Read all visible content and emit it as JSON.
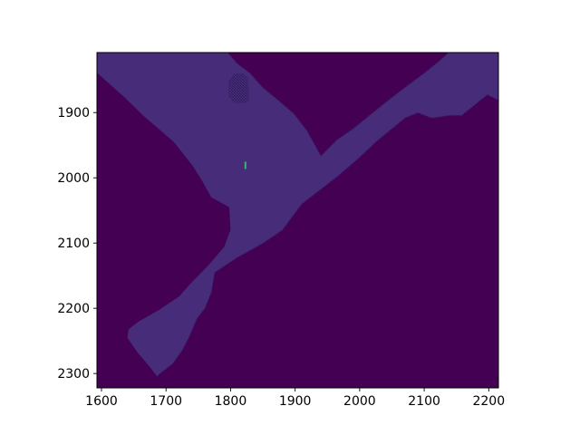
{
  "chart_data": {
    "type": "heatmap",
    "title": "",
    "xlabel": "",
    "ylabel": "",
    "xlim": [
      1593,
      2215
    ],
    "ylim": [
      2322,
      1808
    ],
    "y_axis_inverted": true,
    "x_ticks": [
      1600,
      1700,
      1800,
      1900,
      2000,
      2100,
      2200
    ],
    "y_ticks": [
      1900,
      2000,
      2100,
      2200,
      2300
    ],
    "x_tick_labels": [
      "1600",
      "1700",
      "1800",
      "1900",
      "2000",
      "2100",
      "2200"
    ],
    "y_tick_labels": [
      "1900",
      "2000",
      "2100",
      "2200",
      "2300"
    ],
    "grid": false,
    "colormap": "viridis",
    "colors": {
      "background": "#440154",
      "free_space": "#472c7a",
      "hatched_edge": "#3b2a6e",
      "marker": "#35b779"
    },
    "regions": [
      {
        "name": "free-space",
        "value": "low",
        "polygon": [
          [
            1593,
            1808
          ],
          [
            1795,
            1808
          ],
          [
            1810,
            1825
          ],
          [
            1830,
            1840
          ],
          [
            1850,
            1862
          ],
          [
            1872,
            1880
          ],
          [
            1898,
            1902
          ],
          [
            1918,
            1928
          ],
          [
            1940,
            1967
          ],
          [
            1965,
            1942
          ],
          [
            1990,
            1925
          ],
          [
            2015,
            1905
          ],
          [
            2040,
            1885
          ],
          [
            2070,
            1862
          ],
          [
            2100,
            1840
          ],
          [
            2125,
            1820
          ],
          [
            2138,
            1808
          ],
          [
            2215,
            1808
          ],
          [
            2215,
            1881
          ],
          [
            2198,
            1872
          ],
          [
            2178,
            1888
          ],
          [
            2158,
            1904
          ],
          [
            2140,
            1904
          ],
          [
            2112,
            1908
          ],
          [
            2090,
            1900
          ],
          [
            2070,
            1908
          ],
          [
            2053,
            1922
          ],
          [
            2028,
            1942
          ],
          [
            2000,
            1968
          ],
          [
            1965,
            1998
          ],
          [
            1910,
            2040
          ],
          [
            1880,
            2080
          ],
          [
            1850,
            2100
          ],
          [
            1810,
            2122
          ],
          [
            1775,
            2145
          ],
          [
            1770,
            2175
          ],
          [
            1760,
            2200
          ],
          [
            1748,
            2215
          ],
          [
            1735,
            2245
          ],
          [
            1725,
            2264
          ],
          [
            1710,
            2285
          ],
          [
            1690,
            2300
          ],
          [
            1668,
            2322
          ],
          [
            1593,
            2322
          ]
        ]
      },
      {
        "name": "wall-left-block",
        "value": "background",
        "polygon": [
          [
            1593,
            1839
          ],
          [
            1635,
            1876
          ],
          [
            1665,
            1905
          ],
          [
            1712,
            1945
          ],
          [
            1740,
            1980
          ],
          [
            1755,
            2003
          ],
          [
            1770,
            2030
          ],
          [
            1798,
            2045
          ],
          [
            1800,
            2080
          ],
          [
            1790,
            2106
          ],
          [
            1765,
            2135
          ],
          [
            1740,
            2160
          ],
          [
            1720,
            2182
          ],
          [
            1690,
            2202
          ],
          [
            1658,
            2220
          ],
          [
            1642,
            2232
          ],
          [
            1640,
            2245
          ],
          [
            1656,
            2268
          ],
          [
            1675,
            2290
          ],
          [
            1700,
            2322
          ],
          [
            1593,
            2322
          ]
        ]
      },
      {
        "name": "wall-lower-right-block",
        "value": "background",
        "polygon": [
          [
            2215,
            2030
          ],
          [
            2195,
            2012
          ],
          [
            2170,
            1990
          ],
          [
            2150,
            1972
          ],
          [
            2126,
            1953
          ],
          [
            2110,
            1935
          ],
          [
            2092,
            1940
          ],
          [
            2078,
            1950
          ],
          [
            2055,
            1966
          ],
          [
            2040,
            1982
          ],
          [
            2010,
            1988
          ],
          [
            1985,
            2002
          ],
          [
            1955,
            2040
          ],
          [
            1930,
            2060
          ],
          [
            1900,
            2085
          ],
          [
            1870,
            2104
          ],
          [
            1840,
            2128
          ],
          [
            1800,
            2145
          ],
          [
            1790,
            2175
          ],
          [
            1790,
            2200
          ],
          [
            1770,
            2220
          ],
          [
            1755,
            2252
          ],
          [
            1755,
            2275
          ],
          [
            1778,
            2305
          ],
          [
            1795,
            2322
          ],
          [
            2215,
            2322
          ]
        ]
      },
      {
        "name": "hatched-object",
        "value": "medium",
        "polygon": [
          [
            1797,
            1851
          ],
          [
            1805,
            1841
          ],
          [
            1820,
            1840
          ],
          [
            1827,
            1845
          ],
          [
            1829,
            1882
          ],
          [
            1820,
            1886
          ],
          [
            1804,
            1885
          ],
          [
            1797,
            1876
          ]
        ]
      }
    ],
    "markers": [
      {
        "name": "robot-pose",
        "x": 1823,
        "y": 1981,
        "value": "high"
      }
    ]
  }
}
